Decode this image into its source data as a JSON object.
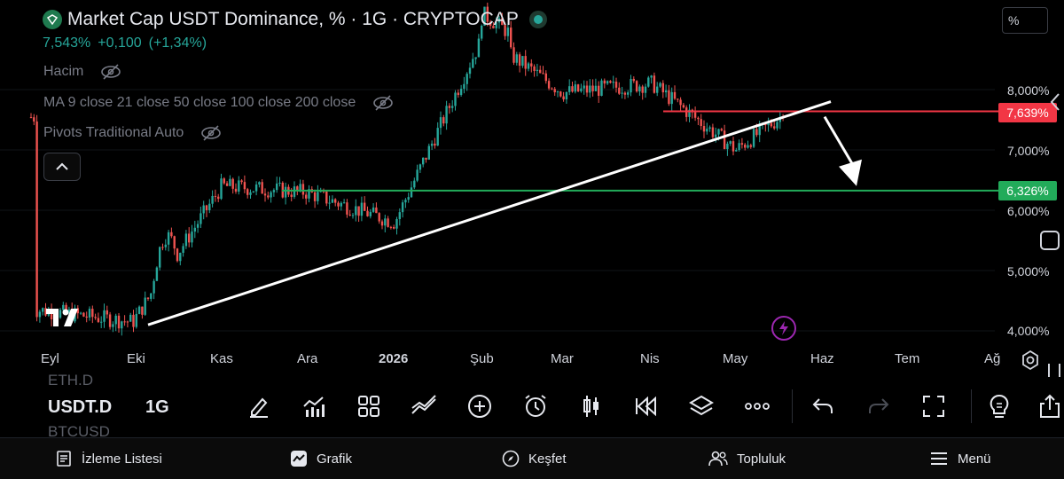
{
  "header": {
    "title": "Market Cap USDT Dominance, % · 1G · CRYPTOCAP",
    "price": "7,543%",
    "change_abs": "+0,100",
    "change_pct": "(+1,34%)"
  },
  "indicators": {
    "volume": "Hacim",
    "ma": "MA 9 close 21 close 50 close 100 close 200 close",
    "pivots": "Pivots Traditional Auto"
  },
  "unit_label": "%",
  "chart_data": {
    "type": "candlestick",
    "symbol": "USDT.D",
    "timeframe": "1G",
    "y_axis_labels": [
      "8,000%",
      "7,000%",
      "6,000%",
      "5,000%",
      "4,000%"
    ],
    "y_ticks": [
      8.0,
      7.0,
      6.0,
      5.0,
      4.0
    ],
    "ylim": [
      3.85,
      8.42
    ],
    "x_axis_labels": [
      "Eyl",
      "Eki",
      "Kas",
      "Ara",
      "2026",
      "Şub",
      "Mar",
      "Nis",
      "May",
      "Haz",
      "Tem",
      "Ağ"
    ],
    "price_levels": [
      {
        "value": 7.639,
        "label": "7,639%",
        "color": "#f23645"
      },
      {
        "value": 6.326,
        "label": "6,326%",
        "color": "#22ab5a"
      }
    ],
    "last_price": 7.543,
    "key_points": [
      {
        "period": "Eyl",
        "value": 4.35
      },
      {
        "period": "Eki",
        "value": 4.15
      },
      {
        "period": "Kas",
        "value": 6.4
      },
      {
        "period": "Ara",
        "value": 6.3
      },
      {
        "period": "2026",
        "value": 5.8
      },
      {
        "period": "Şub",
        "value": 8.9
      },
      {
        "period": "Mar",
        "value": 7.95
      },
      {
        "period": "Nis",
        "value": 8.1
      },
      {
        "period": "May",
        "value": 7.0
      },
      {
        "period": "May",
        "value": 7.543
      }
    ],
    "trendline": {
      "from": {
        "period": "Eki",
        "value": 4.1
      },
      "to": {
        "period": "Haz",
        "value": 7.8
      }
    },
    "projection_arrow": {
      "from": 7.55,
      "to": 6.4
    }
  },
  "toolbar": {
    "symbol_prev": "ETH.D",
    "symbol": "USDT.D",
    "symbol_next": "BTCUSD",
    "timeframe": "1G"
  },
  "nav": {
    "watchlist": "İzleme Listesi",
    "chart": "Grafik",
    "explore": "Keşfet",
    "community": "Topluluk",
    "menu": "Menü"
  },
  "colors": {
    "up": "#26a69a",
    "down": "#ef5350",
    "resistance": "#f23645",
    "support": "#22ab5a"
  }
}
